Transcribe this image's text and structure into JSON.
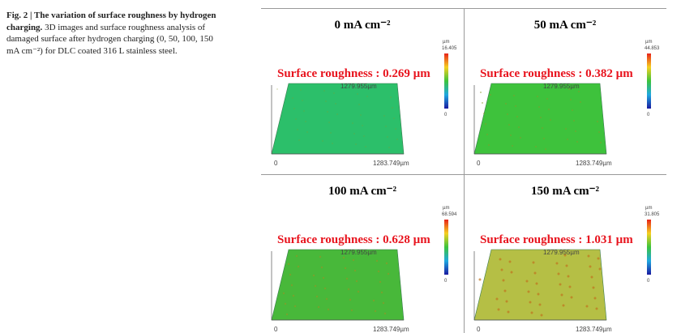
{
  "caption": {
    "title": "Fig. 2 | The variation of surface roughness by hydrogen charging.",
    "text": "3D images and surface roughness analysis of damaged surface after hydrogen charging (0, 50, 100, 150 mA cm⁻²) for DLC coated 316 L stainless steel."
  },
  "panels": [
    {
      "title": "0 mA cm⁻²",
      "roughness": "Surface roughness : 0.269 µm",
      "unit": "µm",
      "scale_max": "16.405",
      "scale_min": "0",
      "y_extent": "1279.955µm",
      "x_extent": "1283.749µm",
      "origin": "0"
    },
    {
      "title": "50 mA cm⁻²",
      "roughness": "Surface roughness : 0.382 µm",
      "unit": "µm",
      "scale_max": "44.853",
      "scale_min": "0",
      "y_extent": "1279.955µm",
      "x_extent": "1283.749µm",
      "origin": "0"
    },
    {
      "title": "100 mA cm⁻²",
      "roughness": "Surface roughness : 0.628 µm",
      "unit": "µm",
      "scale_max": "68.594",
      "scale_min": "0",
      "y_extent": "1279.955µm",
      "x_extent": "1283.749µm",
      "origin": "0"
    },
    {
      "title": "150 mA cm⁻²",
      "roughness": "Surface roughness : 1.031 µm",
      "unit": "µm",
      "scale_max": "31.805",
      "scale_min": "0",
      "y_extent": "1279.955µm",
      "x_extent": "1283.749µm",
      "origin": "0"
    }
  ]
}
